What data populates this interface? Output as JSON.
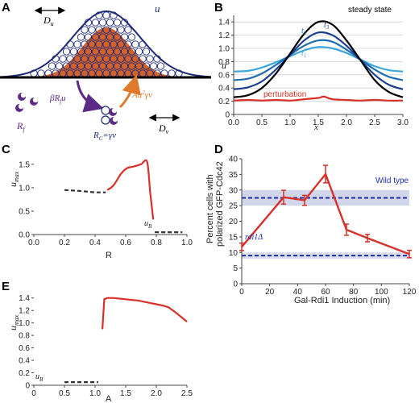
{
  "colors": {
    "navy": "#1f2a78",
    "purple": "#5b2a86",
    "orange": "#e07a2b",
    "fill_orange": "#d2622c",
    "red": "#d7312a",
    "dash_black": "#333333",
    "dash_blue": "#1f2fb0",
    "band": "#c9cfe8",
    "b_t1": "#3ba7dc",
    "b_t2": "#1f6fb0",
    "b_t3": "#1a3f8f",
    "b_ss": "#000000",
    "b_pert": "#d7312a"
  },
  "panelA": {
    "letter": "A",
    "du": "D",
    "du_sub": "u",
    "u": "u",
    "beta": "βR",
    "beta_sub": "f",
    "beta_suffix": "u",
    "au": "Au",
    "au_sup": "2",
    "au_suffix": "γv",
    "rf": "R",
    "rf_sub": "f",
    "rc": "R",
    "rc_sub": "C",
    "rc_eq": "=γv",
    "dv": "D",
    "dv_sub": "v"
  },
  "panelC": {
    "letter": "C"
  },
  "panelE": {
    "letter": "E"
  },
  "chart_data": [
    {
      "id": "B",
      "type": "line",
      "letter": "B",
      "xlabel": "x",
      "ylabel": "u",
      "xlim": [
        0,
        3
      ],
      "ylim": [
        0,
        1.5
      ],
      "x_ticks": [
        "0.0",
        "0.5",
        "1.0",
        "1.5",
        "2.0",
        "2.5",
        "3.0"
      ],
      "y_ticks": [
        "0",
        "0.2",
        "0.4",
        "0.6",
        "0.8",
        "1.0",
        "1.2",
        "1.4"
      ],
      "grid": true,
      "annotations": [
        "steady state",
        "t3",
        "t2",
        "t1",
        "perturbation"
      ],
      "series": [
        {
          "name": "t1",
          "color_key": "b_t1",
          "x": [
            0,
            0.25,
            0.5,
            0.75,
            1.0,
            1.25,
            1.5,
            1.75,
            2.0,
            2.25,
            2.5,
            2.75,
            3.0
          ],
          "values": [
            0.65,
            0.66,
            0.71,
            0.79,
            0.88,
            0.97,
            1.02,
            1.0,
            0.93,
            0.83,
            0.73,
            0.67,
            0.65
          ]
        },
        {
          "name": "t2",
          "color_key": "b_t2",
          "x": [
            0,
            0.25,
            0.5,
            0.75,
            1.0,
            1.25,
            1.5,
            1.75,
            2.0,
            2.25,
            2.5,
            2.75,
            3.0
          ],
          "values": [
            0.52,
            0.54,
            0.62,
            0.75,
            0.9,
            1.04,
            1.12,
            1.1,
            0.98,
            0.83,
            0.68,
            0.57,
            0.52
          ]
        },
        {
          "name": "t3",
          "color_key": "b_t3",
          "x": [
            0,
            0.25,
            0.5,
            0.75,
            1.0,
            1.25,
            1.5,
            1.75,
            2.0,
            2.25,
            2.5,
            2.75,
            3.0
          ],
          "values": [
            0.38,
            0.41,
            0.5,
            0.68,
            0.9,
            1.12,
            1.24,
            1.2,
            1.04,
            0.82,
            0.6,
            0.45,
            0.38
          ]
        },
        {
          "name": "steady state",
          "color_key": "b_ss",
          "x": [
            0,
            0.25,
            0.5,
            0.75,
            1.0,
            1.25,
            1.5,
            1.75,
            2.0,
            2.25,
            2.5,
            2.75,
            3.0
          ],
          "values": [
            0.26,
            0.29,
            0.4,
            0.62,
            0.92,
            1.22,
            1.4,
            1.36,
            1.12,
            0.82,
            0.52,
            0.34,
            0.26
          ]
        },
        {
          "name": "perturbation",
          "color_key": "b_pert",
          "x": [
            0,
            0.25,
            0.5,
            0.75,
            1.0,
            1.25,
            1.5,
            1.6,
            1.75,
            2.0,
            2.25,
            2.5,
            2.75,
            3.0
          ],
          "values": [
            0.21,
            0.22,
            0.21,
            0.22,
            0.21,
            0.23,
            0.25,
            0.27,
            0.23,
            0.22,
            0.21,
            0.22,
            0.21,
            0.21
          ]
        }
      ]
    },
    {
      "id": "C",
      "type": "line",
      "xlabel": "R",
      "ylabel": "u",
      "ylabel_sub": "max",
      "xlim": [
        0,
        1
      ],
      "ylim": [
        0,
        1.6
      ],
      "x_ticks": [
        "0.0",
        "0.2",
        "0.4",
        "0.6",
        "0.8",
        "1.0"
      ],
      "y_ticks": [
        "0.0",
        "0.5",
        "1.0",
        "1.5"
      ],
      "annotations": [
        "u",
        "B"
      ],
      "series": [
        {
          "color_key": "dash_black",
          "dashed": true,
          "x": [
            0.2,
            0.3,
            0.4,
            0.47
          ],
          "values": [
            0.95,
            0.93,
            0.9,
            0.9
          ]
        },
        {
          "color_key": "red",
          "dashed": false,
          "x": [
            0.48,
            0.52,
            0.57,
            0.61,
            0.65,
            0.7,
            0.74,
            0.76,
            0.78
          ],
          "values": [
            0.95,
            1.05,
            1.3,
            1.42,
            1.45,
            1.5,
            1.55,
            0.9,
            0.32
          ]
        },
        {
          "color_key": "dash_black",
          "dashed": true,
          "x": [
            0.79,
            0.88,
            0.97
          ],
          "values": [
            0.05,
            0.05,
            0.05
          ]
        }
      ]
    },
    {
      "id": "D",
      "type": "line",
      "letter": "D",
      "xlabel": "Gal-Rdi1 Induction (min)",
      "ylabel_lines": [
        "Percent cells with",
        "polarized GFP-Cdc42"
      ],
      "xlim": [
        0,
        120
      ],
      "ylim": [
        0,
        40
      ],
      "x_ticks": [
        "0",
        "20",
        "40",
        "60",
        "80",
        "100",
        "120"
      ],
      "y_ticks": [
        "0",
        "5",
        "10",
        "15",
        "20",
        "25",
        "30",
        "35",
        "40"
      ],
      "annotations": [
        "Wild type",
        "rdi1Δ"
      ],
      "reference_lines": [
        {
          "name": "Wild type",
          "value": 27.5,
          "band": [
            25,
            30
          ]
        },
        {
          "name": "rdi1Δ",
          "value": 9,
          "band": [
            8,
            10
          ]
        }
      ],
      "series": [
        {
          "color_key": "red",
          "x": [
            0,
            30,
            45,
            60,
            75,
            90,
            120
          ],
          "values": [
            11.8,
            27.7,
            26.7,
            35.1,
            17.3,
            14.6,
            9.5
          ],
          "errors": [
            1.2,
            2.2,
            1.6,
            2.8,
            1.8,
            1.2,
            1.2
          ]
        }
      ]
    },
    {
      "id": "E",
      "type": "line",
      "xlabel": "A",
      "ylabel": "u",
      "ylabel_sub": "max",
      "xlim": [
        0,
        2.5
      ],
      "ylim": [
        0,
        1.5
      ],
      "x_ticks": [
        "0",
        "0.5",
        "1.0",
        "1.5",
        "2.0",
        "2.5"
      ],
      "y_ticks": [
        "0",
        "0.2",
        "0.4",
        "0.6",
        "0.8",
        "1.0",
        "1.2",
        "1.4"
      ],
      "annotations": [
        "u",
        "B"
      ],
      "series": [
        {
          "color_key": "dash_black",
          "dashed": true,
          "x": [
            0.5,
            0.75,
            1.0,
            1.05
          ],
          "values": [
            0.05,
            0.05,
            0.05,
            0.05
          ]
        },
        {
          "color_key": "red",
          "dashed": false,
          "x": [
            1.12,
            1.15,
            1.2,
            1.3,
            1.4,
            1.5,
            1.6,
            1.7,
            1.8,
            1.9,
            2.0,
            2.1,
            2.2,
            2.3,
            2.4,
            2.5
          ],
          "values": [
            0.9,
            1.38,
            1.4,
            1.4,
            1.39,
            1.38,
            1.37,
            1.36,
            1.34,
            1.32,
            1.3,
            1.28,
            1.25,
            1.18,
            1.1,
            1.02
          ]
        }
      ]
    }
  ]
}
